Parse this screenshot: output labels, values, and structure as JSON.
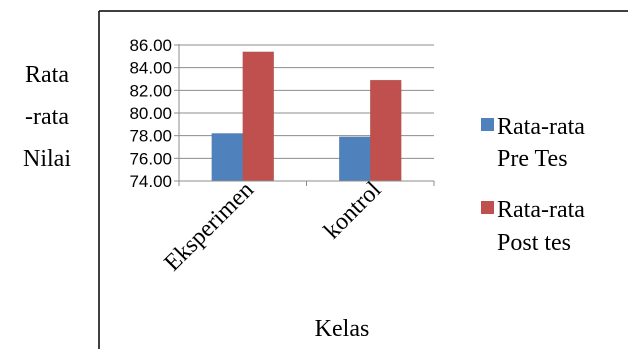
{
  "chart_data": {
    "type": "bar",
    "categories": [
      "Eksperimen",
      "kontrol"
    ],
    "series": [
      {
        "name": "Rata-rata Pre Tes",
        "values": [
          78.2,
          77.9
        ],
        "color": "#4f81bd"
      },
      {
        "name": "Rata-rata Post tes",
        "values": [
          85.4,
          82.9
        ],
        "color": "#c0504d"
      }
    ],
    "ylim": [
      74,
      86
    ],
    "yticks": [
      "86.00",
      "84.00",
      "82.00",
      "80.00",
      "78.00",
      "76.00",
      "74.00"
    ],
    "ylabel": [
      "Rata",
      "-rata",
      "Nilai"
    ],
    "xlabel": "Kelas",
    "legend_lines": [
      [
        "Rata-rata",
        "Pre Tes"
      ],
      [
        "Rata-rata",
        "Post tes"
      ]
    ],
    "legend_position": "right",
    "grid": "horizontal"
  }
}
